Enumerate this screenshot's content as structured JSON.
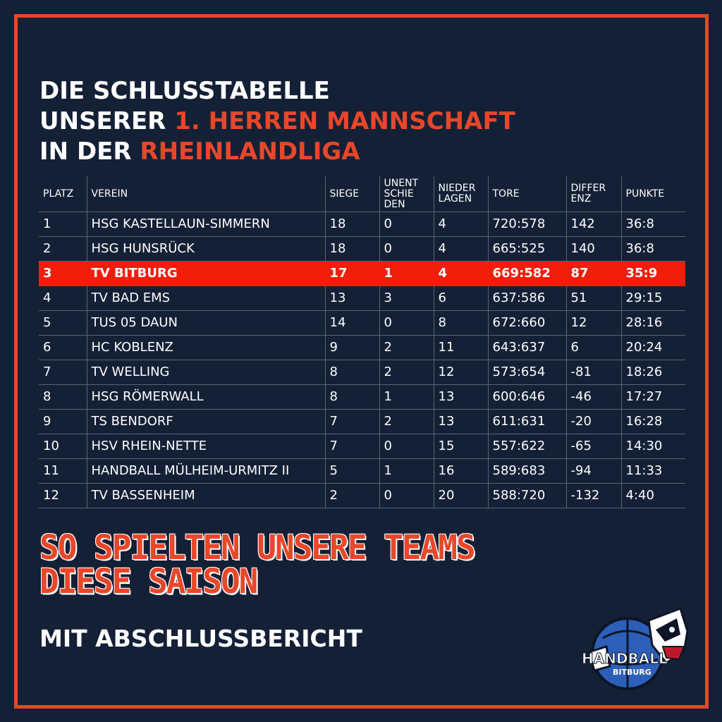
{
  "headline": {
    "line1": "DIE SCHLUSSTABELLE",
    "line2_prefix": "UNSERER ",
    "line2_accent": "1. HERREN MANNSCHAFT",
    "line3_prefix": "IN DER ",
    "line3_accent": "RHEINLANDLIGA"
  },
  "table": {
    "headers": {
      "platz": "PLATZ",
      "verein": "VEREIN",
      "siege": "SIEGE",
      "unentschieden": "UNENT SCHIE DEN",
      "niederlagen": "NIEDER LAGEN",
      "tore": "TORE",
      "differenz": "DIFFER ENZ",
      "punkte": "PUNKTE"
    },
    "rows": [
      {
        "platz": "1",
        "verein": "HSG KASTELLAUN-SIMMERN",
        "siege": "18",
        "unent": "0",
        "nieder": "4",
        "tore": "720:578",
        "diff": "142",
        "punkte": "36:8"
      },
      {
        "platz": "2",
        "verein": "HSG HUNSRÜCK",
        "siege": "18",
        "unent": "0",
        "nieder": "4",
        "tore": "665:525",
        "diff": "140",
        "punkte": "36:8"
      },
      {
        "platz": "3",
        "verein": "TV BITBURG",
        "siege": "17",
        "unent": "1",
        "nieder": "4",
        "tore": "669:582",
        "diff": "87",
        "punkte": "35:9"
      },
      {
        "platz": "4",
        "verein": "TV BAD EMS",
        "siege": "13",
        "unent": "3",
        "nieder": "6",
        "tore": "637:586",
        "diff": "51",
        "punkte": "29:15"
      },
      {
        "platz": "5",
        "verein": "TUS 05 DAUN",
        "siege": "14",
        "unent": "0",
        "nieder": "8",
        "tore": "672:660",
        "diff": "12",
        "punkte": "28:16"
      },
      {
        "platz": "6",
        "verein": "HC KOBLENZ",
        "siege": "9",
        "unent": "2",
        "nieder": "11",
        "tore": "643:637",
        "diff": "6",
        "punkte": "20:24"
      },
      {
        "platz": "7",
        "verein": "TV WELLING",
        "siege": "8",
        "unent": "2",
        "nieder": "12",
        "tore": "573:654",
        "diff": "-81",
        "punkte": "18:26"
      },
      {
        "platz": "8",
        "verein": "HSG RÖMERWALL",
        "siege": "8",
        "unent": "1",
        "nieder": "13",
        "tore": "600:646",
        "diff": "-46",
        "punkte": "17:27"
      },
      {
        "platz": "9",
        "verein": "TS BENDORF",
        "siege": "7",
        "unent": "2",
        "nieder": "13",
        "tore": "611:631",
        "diff": "-20",
        "punkte": "16:28"
      },
      {
        "platz": "10",
        "verein": "HSV RHEIN-NETTE",
        "siege": "7",
        "unent": "0",
        "nieder": "15",
        "tore": "557:622",
        "diff": "-65",
        "punkte": "14:30"
      },
      {
        "platz": "11",
        "verein": "HANDBALL MÜLHEIM-URMITZ II",
        "siege": "5",
        "unent": "1",
        "nieder": "16",
        "tore": "589:683",
        "diff": "-94",
        "punkte": "11:33"
      },
      {
        "platz": "12",
        "verein": "TV BASSENHEIM",
        "siege": "2",
        "unent": "0",
        "nieder": "20",
        "tore": "588:720",
        "diff": "-132",
        "punkte": "4:40"
      }
    ],
    "highlight_row": "3"
  },
  "slogan": {
    "line1": "SO SPIELTEN UNSERE TEAMS",
    "line2": "DIESE SAISON"
  },
  "subline": "MIT ABSCHLUSSBERICHT",
  "logo": {
    "word_top": "HANDBALL",
    "word_bottom": "BITBURG",
    "icon": "badger-mascot-icon"
  },
  "colors": {
    "background": "#142036",
    "accent": "#e8472a",
    "highlight": "#f01e0a",
    "text": "#ffffff"
  }
}
